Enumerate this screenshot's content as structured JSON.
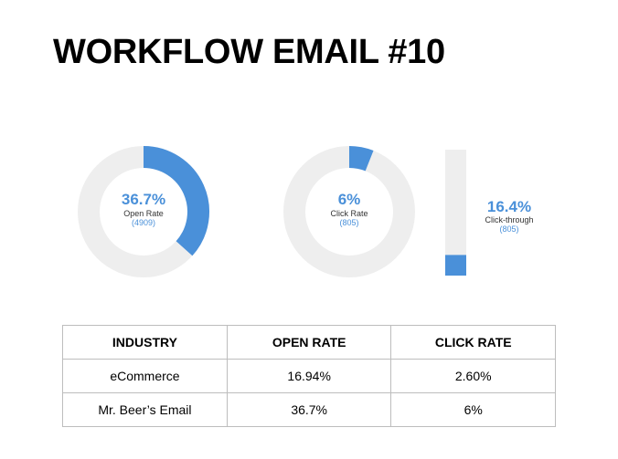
{
  "title": "WORKFLOW EMAIL #10",
  "colors": {
    "accent": "#4a90d9",
    "track": "#eeeeee",
    "label": "#333333"
  },
  "chart_data": [
    {
      "type": "pie",
      "variant": "donut",
      "value_pct": 36.7,
      "value_label": "36.7%",
      "label": "Open Rate",
      "count_label": "(4909)"
    },
    {
      "type": "pie",
      "variant": "donut",
      "value_pct": 6,
      "value_label": "6%",
      "label": "Click Rate",
      "count_label": "(805)"
    },
    {
      "type": "bar",
      "orientation": "vertical",
      "value_pct": 16.4,
      "value_label": "16.4%",
      "label": "Click-through",
      "count_label": "(805)"
    }
  ],
  "table": {
    "headers": [
      "INDUSTRY",
      "OPEN RATE",
      "CLICK RATE"
    ],
    "rows": [
      [
        "eCommerce",
        "16.94%",
        "2.60%"
      ],
      [
        "Mr. Beer’s Email",
        "36.7%",
        "6%"
      ]
    ]
  }
}
